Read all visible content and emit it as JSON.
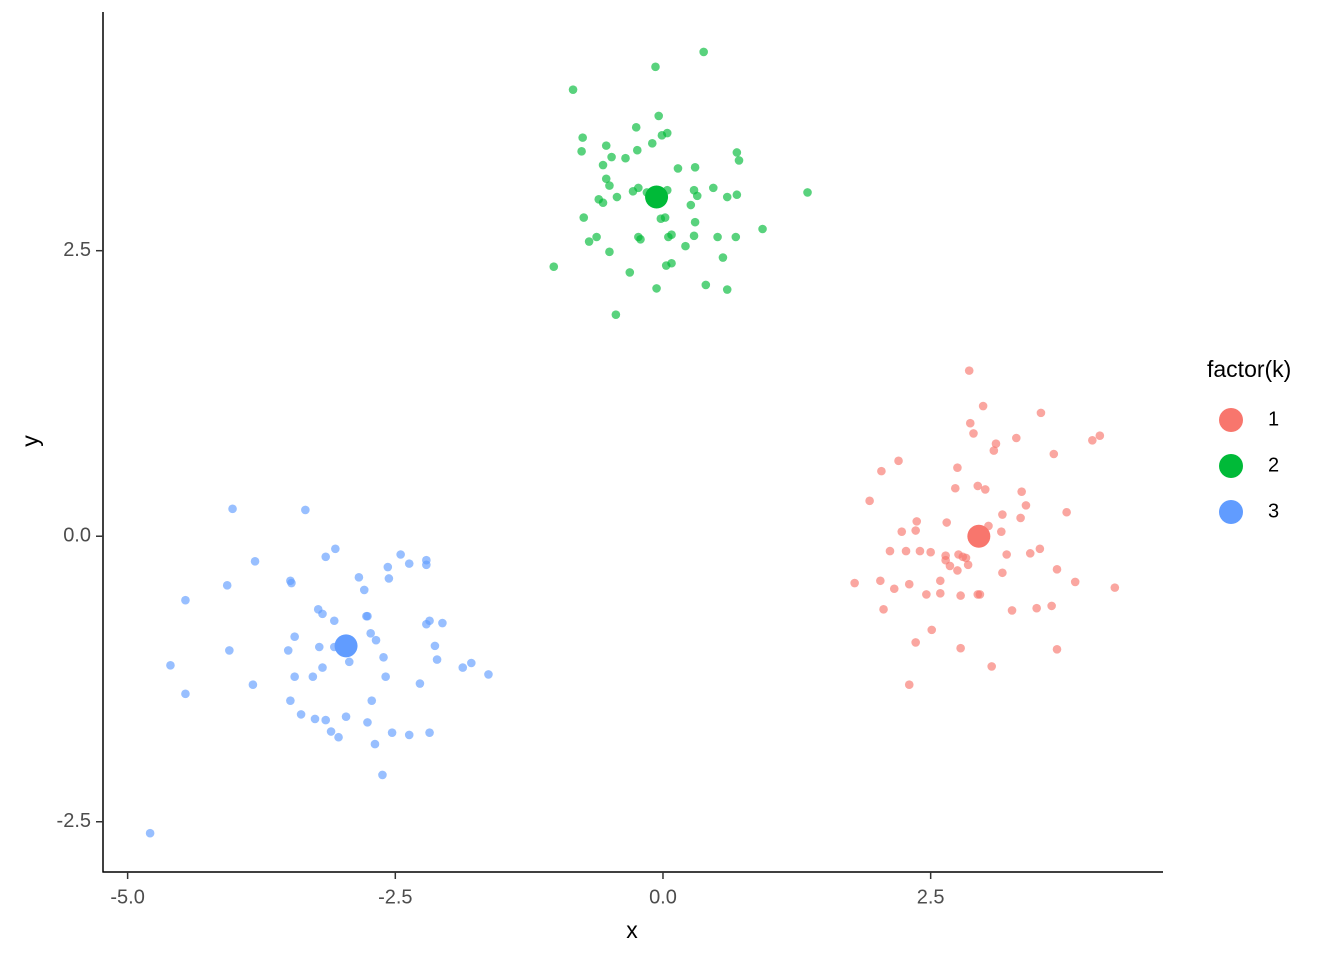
{
  "chart_data": {
    "type": "scatter",
    "x_label": "x",
    "y_label": "y",
    "legend_title": "factor(k)",
    "xlim": [
      -5.23,
      4.67
    ],
    "ylim": [
      -2.94,
      4.59
    ],
    "xticks": [
      {
        "value": -5,
        "label": "-5.0"
      },
      -2.5,
      {
        "value": 0,
        "label": "0.0"
      },
      2.5
    ],
    "yticks": [
      -2.5,
      {
        "value": 0,
        "label": "0.0"
      },
      2.5
    ],
    "grid": false,
    "legend": "right",
    "series": [
      {
        "name": "1",
        "color": "#F8766D",
        "x": [
          2.86,
          2.99,
          3.53,
          2.87,
          2.9,
          3.3,
          4.08,
          4.01,
          3.11,
          3.09,
          3.65,
          2.04,
          2.2,
          2.75,
          2.94,
          2.73,
          3.01,
          3.35,
          3.39,
          1.93,
          3.77,
          3.34,
          2.37,
          2.65,
          3.17,
          3.04,
          2.23,
          2.36,
          3.16,
          2.12,
          2.27,
          2.4,
          2.5,
          2.64,
          2.64,
          2.76,
          2.8,
          2.83,
          3.21,
          3.43,
          3.52,
          2.85,
          2.68,
          2.75,
          3.17,
          3.68,
          1.79,
          2.03,
          2.3,
          2.16,
          2.59,
          3.85,
          4.22,
          2.46,
          2.78,
          2.94,
          2.96,
          2.59,
          2.06,
          3.26,
          3.49,
          3.63,
          2.51,
          2.36,
          2.78,
          3.68,
          3.07,
          2.3
        ],
        "values": [
          1.45,
          1.14,
          1.08,
          0.99,
          0.9,
          0.86,
          0.88,
          0.84,
          0.81,
          0.75,
          0.72,
          0.57,
          0.66,
          0.6,
          0.44,
          0.42,
          0.41,
          0.39,
          0.27,
          0.31,
          0.21,
          0.16,
          0.13,
          0.12,
          0.19,
          0.09,
          0.04,
          0.05,
          0.04,
          -0.13,
          -0.13,
          -0.13,
          -0.14,
          -0.17,
          -0.21,
          -0.16,
          -0.18,
          -0.19,
          -0.16,
          -0.15,
          -0.11,
          -0.25,
          -0.26,
          -0.3,
          -0.32,
          -0.29,
          -0.41,
          -0.39,
          -0.42,
          -0.46,
          -0.39,
          -0.4,
          -0.45,
          -0.51,
          -0.52,
          -0.51,
          -0.51,
          -0.5,
          -0.64,
          -0.65,
          -0.63,
          -0.61,
          -0.82,
          -0.93,
          -0.98,
          -0.99,
          -1.14,
          -1.3
        ],
        "center": {
          "x": 2.95,
          "y": 0
        }
      },
      {
        "name": "2",
        "color": "#00BA38",
        "x": [
          0.38,
          -0.07,
          -0.84,
          -0.04,
          -0.75,
          -0.25,
          -0.53,
          -0.01,
          0.04,
          -0.1,
          -0.48,
          -0.24,
          -0.35,
          -0.76,
          0.69,
          0.71,
          0.14,
          -0.56,
          0.3,
          -0.53,
          -0.5,
          -0.23,
          -0.28,
          -0.15,
          -0.43,
          -0.6,
          -0.56,
          0.04,
          0.29,
          0.32,
          0.47,
          0.69,
          0.6,
          1.35,
          0.26,
          -0.02,
          0.02,
          0.3,
          -0.74,
          0.68,
          0.93,
          -0.62,
          -0.69,
          -0.23,
          -0.21,
          0.05,
          0.08,
          0.29,
          0.51,
          -0.5,
          0.21,
          0.56,
          -1.02,
          0.03,
          0.08,
          -0.31,
          0.4,
          -0.06,
          0.6,
          -0.44
        ],
        "values": [
          4.24,
          4.11,
          3.91,
          3.68,
          3.49,
          3.58,
          3.42,
          3.51,
          3.53,
          3.44,
          3.32,
          3.38,
          3.31,
          3.37,
          3.36,
          3.29,
          3.22,
          3.25,
          3.23,
          3.13,
          3.07,
          3.05,
          3.02,
          3.01,
          2.97,
          2.95,
          2.92,
          3.03,
          3.03,
          2.98,
          3.05,
          2.99,
          2.97,
          3.01,
          2.9,
          2.78,
          2.79,
          2.75,
          2.79,
          2.62,
          2.69,
          2.62,
          2.58,
          2.62,
          2.6,
          2.62,
          2.64,
          2.63,
          2.62,
          2.49,
          2.54,
          2.44,
          2.36,
          2.37,
          2.39,
          2.31,
          2.2,
          2.17,
          2.16,
          1.94
        ],
        "center": {
          "x": -0.06,
          "y": 2.97
        }
      },
      {
        "name": "3",
        "color": "#619CFF",
        "x": [
          -4.02,
          -3.34,
          -4.79,
          -3.06,
          -3.15,
          -2.45,
          -2.37,
          -2.21,
          -2.21,
          -2.57,
          -2.56,
          -3.81,
          -4.07,
          -3.48,
          -3.47,
          -2.84,
          -4.46,
          -2.79,
          -2.77,
          -2.76,
          -3.22,
          -3.18,
          -3.07,
          -2.18,
          -2.21,
          -2.06,
          -3.44,
          -3.07,
          -2.73,
          -2.68,
          -4.05,
          -3.5,
          -3.21,
          -2.93,
          -2.93,
          -2.61,
          -2.13,
          -2.11,
          -1.79,
          -1.87,
          -1.63,
          -4.6,
          -3.18,
          -3.27,
          -3.44,
          -2.59,
          -2.27,
          -3.83,
          -4.46,
          -3.48,
          -2.72,
          -3.38,
          -3.25,
          -3.15,
          -2.96,
          -2.76,
          -3.1,
          -3.03,
          -2.53,
          -2.37,
          -2.18,
          -2.69,
          -2.62
        ],
        "values": [
          0.24,
          0.23,
          -2.6,
          -0.11,
          -0.18,
          -0.16,
          -0.24,
          -0.21,
          -0.25,
          -0.27,
          -0.37,
          -0.22,
          -0.43,
          -0.39,
          -0.41,
          -0.36,
          -0.56,
          -0.47,
          -0.7,
          -0.7,
          -0.64,
          -0.68,
          -0.74,
          -0.74,
          -0.77,
          -0.76,
          -0.88,
          -0.97,
          -0.85,
          -0.91,
          -1.0,
          -1.0,
          -0.97,
          -0.98,
          -1.1,
          -1.06,
          -0.96,
          -1.08,
          -1.11,
          -1.15,
          -1.21,
          -1.13,
          -1.15,
          -1.23,
          -1.23,
          -1.23,
          -1.29,
          -1.3,
          -1.38,
          -1.44,
          -1.44,
          -1.56,
          -1.6,
          -1.61,
          -1.58,
          -1.63,
          -1.71,
          -1.76,
          -1.72,
          -1.74,
          -1.72,
          -1.82,
          -2.09
        ],
        "center": {
          "x": -2.96,
          "y": -0.96
        }
      }
    ]
  }
}
